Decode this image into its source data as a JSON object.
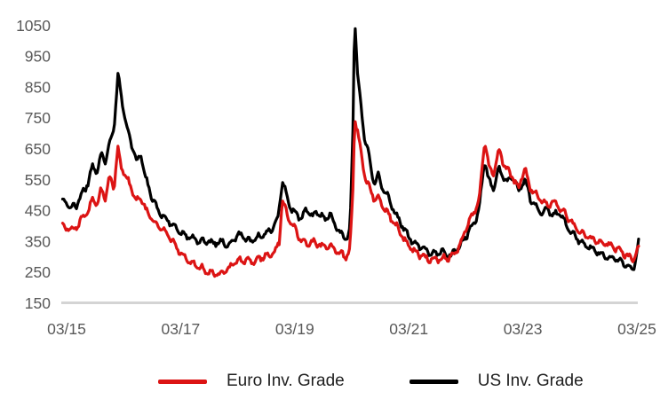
{
  "chart_data": {
    "type": "line",
    "title": "",
    "x_axis": {
      "tick_labels": [
        "03/15",
        "03/17",
        "03/19",
        "03/21",
        "03/23",
        "03/25"
      ],
      "tick_times": [
        2015.17,
        2017.17,
        2019.17,
        2021.17,
        2023.17,
        2025.17
      ],
      "range": [
        2015.1,
        2025.2
      ]
    },
    "y_axis": {
      "tick_labels": [
        150,
        250,
        350,
        450,
        550,
        650,
        750,
        850,
        950,
        1050
      ],
      "min": 150,
      "max": 1050,
      "gridlines": "baseline-only"
    },
    "legend": [
      {
        "label": "Euro Inv. Grade",
        "color": "#dc1414"
      },
      {
        "label": "US Inv. Grade",
        "color": "#000000"
      }
    ],
    "series": [
      {
        "name": "US Inv. Grade",
        "color": "#000000",
        "points": [
          [
            2015.1,
            475
          ],
          [
            2015.17,
            480
          ],
          [
            2015.25,
            460
          ],
          [
            2015.35,
            470
          ],
          [
            2015.45,
            510
          ],
          [
            2015.55,
            540
          ],
          [
            2015.63,
            600
          ],
          [
            2015.7,
            570
          ],
          [
            2015.78,
            640
          ],
          [
            2015.85,
            610
          ],
          [
            2015.92,
            660
          ],
          [
            2016.0,
            720
          ],
          [
            2016.07,
            890
          ],
          [
            2016.12,
            830
          ],
          [
            2016.18,
            760
          ],
          [
            2016.25,
            700
          ],
          [
            2016.33,
            650
          ],
          [
            2016.4,
            610
          ],
          [
            2016.47,
            630
          ],
          [
            2016.55,
            560
          ],
          [
            2016.65,
            500
          ],
          [
            2016.75,
            460
          ],
          [
            2016.85,
            435
          ],
          [
            2016.95,
            420
          ],
          [
            2017.05,
            400
          ],
          [
            2017.17,
            380
          ],
          [
            2017.3,
            365
          ],
          [
            2017.45,
            355
          ],
          [
            2017.6,
            350
          ],
          [
            2017.75,
            345
          ],
          [
            2017.9,
            350
          ],
          [
            2018.0,
            335
          ],
          [
            2018.1,
            360
          ],
          [
            2018.22,
            372
          ],
          [
            2018.35,
            352
          ],
          [
            2018.5,
            362
          ],
          [
            2018.65,
            372
          ],
          [
            2018.8,
            395
          ],
          [
            2018.88,
            430
          ],
          [
            2018.95,
            545
          ],
          [
            2019.02,
            505
          ],
          [
            2019.1,
            460
          ],
          [
            2019.17,
            440
          ],
          [
            2019.28,
            425
          ],
          [
            2019.38,
            455
          ],
          [
            2019.48,
            430
          ],
          [
            2019.58,
            450
          ],
          [
            2019.68,
            420
          ],
          [
            2019.78,
            440
          ],
          [
            2019.88,
            405
          ],
          [
            2019.98,
            375
          ],
          [
            2020.08,
            360
          ],
          [
            2020.14,
            385
          ],
          [
            2020.19,
            700
          ],
          [
            2020.22,
            1090
          ],
          [
            2020.27,
            900
          ],
          [
            2020.33,
            790
          ],
          [
            2020.4,
            680
          ],
          [
            2020.46,
            640
          ],
          [
            2020.52,
            570
          ],
          [
            2020.58,
            540
          ],
          [
            2020.63,
            565
          ],
          [
            2020.7,
            530
          ],
          [
            2020.8,
            495
          ],
          [
            2020.9,
            455
          ],
          [
            2021.0,
            420
          ],
          [
            2021.1,
            385
          ],
          [
            2021.17,
            365
          ],
          [
            2021.3,
            340
          ],
          [
            2021.45,
            322
          ],
          [
            2021.6,
            310
          ],
          [
            2021.75,
            318
          ],
          [
            2021.9,
            305
          ],
          [
            2022.0,
            322
          ],
          [
            2022.1,
            345
          ],
          [
            2022.2,
            375
          ],
          [
            2022.3,
            405
          ],
          [
            2022.4,
            450
          ],
          [
            2022.5,
            615
          ],
          [
            2022.58,
            545
          ],
          [
            2022.65,
            520
          ],
          [
            2022.75,
            585
          ],
          [
            2022.82,
            560
          ],
          [
            2022.9,
            545
          ],
          [
            2023.0,
            560
          ],
          [
            2023.1,
            510
          ],
          [
            2023.2,
            555
          ],
          [
            2023.3,
            490
          ],
          [
            2023.4,
            465
          ],
          [
            2023.5,
            445
          ],
          [
            2023.6,
            455
          ],
          [
            2023.7,
            435
          ],
          [
            2023.8,
            445
          ],
          [
            2023.9,
            415
          ],
          [
            2024.0,
            385
          ],
          [
            2024.1,
            365
          ],
          [
            2024.17,
            352
          ],
          [
            2024.3,
            335
          ],
          [
            2024.45,
            318
          ],
          [
            2024.6,
            302
          ],
          [
            2024.75,
            296
          ],
          [
            2024.9,
            286
          ],
          [
            2025.0,
            272
          ],
          [
            2025.08,
            258
          ],
          [
            2025.13,
            270
          ],
          [
            2025.2,
            345
          ]
        ]
      },
      {
        "name": "Euro Inv. Grade",
        "color": "#dc1414",
        "points": [
          [
            2015.1,
            398
          ],
          [
            2015.17,
            395
          ],
          [
            2015.25,
            382
          ],
          [
            2015.35,
            398
          ],
          [
            2015.45,
            425
          ],
          [
            2015.55,
            445
          ],
          [
            2015.63,
            490
          ],
          [
            2015.7,
            465
          ],
          [
            2015.78,
            520
          ],
          [
            2015.85,
            490
          ],
          [
            2015.92,
            560
          ],
          [
            2016.0,
            525
          ],
          [
            2016.07,
            655
          ],
          [
            2016.12,
            600
          ],
          [
            2016.18,
            570
          ],
          [
            2016.25,
            545
          ],
          [
            2016.33,
            510
          ],
          [
            2016.4,
            480
          ],
          [
            2016.47,
            495
          ],
          [
            2016.55,
            455
          ],
          [
            2016.65,
            430
          ],
          [
            2016.75,
            405
          ],
          [
            2016.85,
            388
          ],
          [
            2016.95,
            372
          ],
          [
            2017.05,
            345
          ],
          [
            2017.17,
            308
          ],
          [
            2017.3,
            288
          ],
          [
            2017.45,
            272
          ],
          [
            2017.6,
            258
          ],
          [
            2017.72,
            245
          ],
          [
            2017.85,
            242
          ],
          [
            2018.0,
            258
          ],
          [
            2018.12,
            282
          ],
          [
            2018.25,
            292
          ],
          [
            2018.4,
            283
          ],
          [
            2018.55,
            295
          ],
          [
            2018.7,
            305
          ],
          [
            2018.82,
            315
          ],
          [
            2018.9,
            345
          ],
          [
            2018.95,
            485
          ],
          [
            2019.02,
            445
          ],
          [
            2019.1,
            410
          ],
          [
            2019.17,
            390
          ],
          [
            2019.28,
            352
          ],
          [
            2019.38,
            342
          ],
          [
            2019.48,
            350
          ],
          [
            2019.58,
            342
          ],
          [
            2019.68,
            332
          ],
          [
            2019.78,
            338
          ],
          [
            2019.88,
            322
          ],
          [
            2019.98,
            310
          ],
          [
            2020.08,
            302
          ],
          [
            2020.14,
            325
          ],
          [
            2020.19,
            520
          ],
          [
            2020.22,
            750
          ],
          [
            2020.27,
            710
          ],
          [
            2020.33,
            640
          ],
          [
            2020.4,
            560
          ],
          [
            2020.46,
            530
          ],
          [
            2020.52,
            505
          ],
          [
            2020.58,
            485
          ],
          [
            2020.63,
            495
          ],
          [
            2020.7,
            468
          ],
          [
            2020.8,
            440
          ],
          [
            2020.9,
            415
          ],
          [
            2021.0,
            385
          ],
          [
            2021.1,
            352
          ],
          [
            2021.17,
            335
          ],
          [
            2021.3,
            315
          ],
          [
            2021.45,
            298
          ],
          [
            2021.6,
            290
          ],
          [
            2021.75,
            296
          ],
          [
            2021.9,
            300
          ],
          [
            2022.0,
            318
          ],
          [
            2022.1,
            355
          ],
          [
            2022.2,
            405
          ],
          [
            2022.3,
            440
          ],
          [
            2022.4,
            480
          ],
          [
            2022.5,
            680
          ],
          [
            2022.58,
            590
          ],
          [
            2022.65,
            565
          ],
          [
            2022.75,
            645
          ],
          [
            2022.82,
            610
          ],
          [
            2022.9,
            580
          ],
          [
            2023.0,
            555
          ],
          [
            2023.1,
            525
          ],
          [
            2023.2,
            590
          ],
          [
            2023.3,
            525
          ],
          [
            2023.4,
            502
          ],
          [
            2023.5,
            482
          ],
          [
            2023.6,
            468
          ],
          [
            2023.7,
            478
          ],
          [
            2023.8,
            462
          ],
          [
            2023.9,
            442
          ],
          [
            2024.0,
            415
          ],
          [
            2024.1,
            395
          ],
          [
            2024.17,
            382
          ],
          [
            2024.3,
            366
          ],
          [
            2024.45,
            352
          ],
          [
            2024.6,
            346
          ],
          [
            2024.75,
            332
          ],
          [
            2024.9,
            320
          ],
          [
            2025.0,
            302
          ],
          [
            2025.08,
            292
          ],
          [
            2025.13,
            298
          ],
          [
            2025.2,
            330
          ]
        ]
      }
    ],
    "style": {
      "axis_label_color": "#595959",
      "axis_line_color": "#d4d4d4",
      "background": "#ffffff",
      "line_width": 3.2
    }
  }
}
